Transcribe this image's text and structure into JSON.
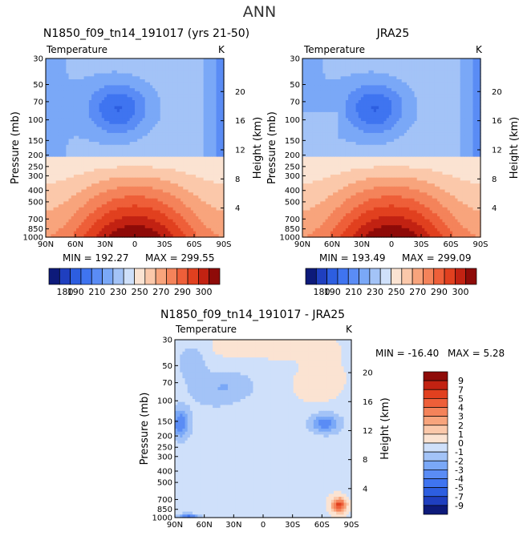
{
  "page": {
    "title": "ANN"
  },
  "panels": [
    {
      "title": "N1850_f09_tn14_191017 (yrs 21-50)",
      "variable": "Temperature",
      "units": "K",
      "stats": {
        "min_label": "MIN = 192.27",
        "max_label": "MAX = 299.55"
      }
    },
    {
      "title": "JRA25",
      "variable": "Temperature",
      "units": "K",
      "stats": {
        "min_label": "MIN = 193.49",
        "max_label": "MAX = 299.09"
      }
    },
    {
      "title": "N1850_f09_tn14_191017 - JRA25",
      "variable": "Temperature",
      "units": "K",
      "stats": {
        "min_label": "MIN = -16.40",
        "max_label": "MAX =   5.28"
      }
    }
  ],
  "axes": {
    "ylabel": "Pressure (mb)",
    "ylabel_right": "Height (km)"
  },
  "chart_data": [
    {
      "type": "heatmap",
      "title": "N1850_f09_tn14_191017 (yrs 21-50)",
      "x_ticks": [
        "90N",
        "60N",
        "30N",
        "0",
        "30S",
        "60S",
        "90S"
      ],
      "y_ticks": [
        30,
        50,
        70,
        100,
        150,
        200,
        250,
        300,
        400,
        500,
        700,
        850,
        1000
      ],
      "y_ticks_right": [
        4,
        8,
        12,
        16,
        20
      ],
      "ylim": [
        1000,
        30
      ],
      "field": "mean",
      "min": 192.27,
      "max": 299.55
    },
    {
      "type": "heatmap",
      "title": "JRA25",
      "x_ticks": [
        "90N",
        "60N",
        "30N",
        "0",
        "30S",
        "60S",
        "90S"
      ],
      "y_ticks": [
        30,
        50,
        70,
        100,
        150,
        200,
        250,
        300,
        400,
        500,
        700,
        850,
        1000
      ],
      "y_ticks_right": [
        4,
        8,
        12,
        16,
        20
      ],
      "ylim": [
        1000,
        30
      ],
      "field": "mean",
      "min": 193.49,
      "max": 299.09
    },
    {
      "type": "heatmap",
      "title": "N1850_f09_tn14_191017 - JRA25",
      "x_ticks": [
        "90N",
        "60N",
        "30N",
        "0",
        "30S",
        "60S",
        "90S"
      ],
      "y_ticks": [
        30,
        50,
        70,
        100,
        150,
        200,
        250,
        300,
        400,
        500,
        700,
        850,
        1000
      ],
      "y_ticks_right": [
        4,
        8,
        12,
        16,
        20
      ],
      "ylim": [
        1000,
        30
      ],
      "field": "diff",
      "min": -16.4,
      "max": 5.28
    }
  ],
  "colorbar_mean": {
    "colors": [
      "#0d1a7a",
      "#1f3fbf",
      "#2d5ee0",
      "#3f74f0",
      "#5a8cf5",
      "#7aa8f7",
      "#a3c3f7",
      "#cfe0fa",
      "#fbe3d2",
      "#fbc8aa",
      "#f8a47c",
      "#f4835a",
      "#ee5f39",
      "#e1401f",
      "#c22212",
      "#8e0b08"
    ],
    "tick_labels": [
      "180",
      "190",
      "210",
      "230",
      "250",
      "270",
      "290",
      "300"
    ]
  },
  "colorbar_diff": {
    "colors": [
      "#0d1a7a",
      "#1f3fbf",
      "#2d5ee0",
      "#3f74f0",
      "#5a8cf5",
      "#7aa8f7",
      "#a3c3f7",
      "#cfe0fa",
      "#fbe3d2",
      "#fbc8aa",
      "#f8a47c",
      "#f4835a",
      "#ee5f39",
      "#e1401f",
      "#c22212",
      "#8e0b08"
    ],
    "tick_labels": [
      "9",
      "7",
      "5",
      "4",
      "3",
      "2",
      "1",
      "0",
      "-1",
      "-2",
      "-3",
      "-4",
      "-5",
      "-7",
      "-9"
    ]
  }
}
